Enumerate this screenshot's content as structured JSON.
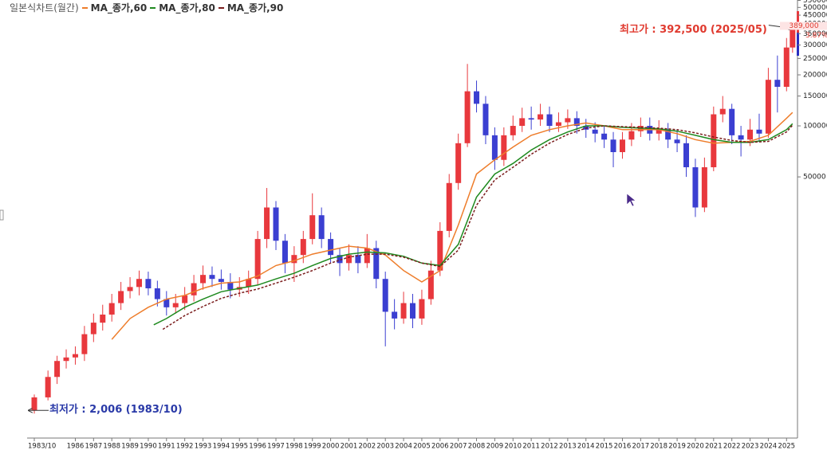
{
  "chart_data": {
    "type": "candlestick",
    "title": "일본식차트(월간)",
    "x": [
      1983.75,
      1984.5,
      1985,
      1985.5,
      1986,
      1986.5,
      1987,
      1987.5,
      1988,
      1988.5,
      1989,
      1989.5,
      1990,
      1990.5,
      1991,
      1991.5,
      1992,
      1992.5,
      1993,
      1993.5,
      1994,
      1994.5,
      1995,
      1995.5,
      1996,
      1996.5,
      1997,
      1997.5,
      1998,
      1998.5,
      1999,
      1999.5,
      2000,
      2000.5,
      2001,
      2001.5,
      2002,
      2002.5,
      2003,
      2003.5,
      2004,
      2004.5,
      2005,
      2005.5,
      2006,
      2006.5,
      2007,
      2007.5,
      2008,
      2008.5,
      2009,
      2009.5,
      2010,
      2010.5,
      2011,
      2011.5,
      2012,
      2012.5,
      2013,
      2013.5,
      2014,
      2014.5,
      2015,
      2015.5,
      2016,
      2016.5,
      2017,
      2017.5,
      2018,
      2018.5,
      2019,
      2019.5,
      2020,
      2020.5,
      2021,
      2021.5,
      2022,
      2022.5,
      2023,
      2023.5,
      2024,
      2024.5,
      2025,
      2025.33
    ],
    "open": [
      2100,
      2500,
      3300,
      4100,
      4300,
      4500,
      5900,
      6900,
      7700,
      9000,
      10600,
      11200,
      12500,
      11000,
      9500,
      8500,
      9000,
      10000,
      11800,
      13200,
      12500,
      12000,
      10800,
      11200,
      12500,
      21500,
      33000,
      21000,
      15500,
      17300,
      21500,
      29700,
      21500,
      17300,
      15500,
      17300,
      15500,
      19000,
      12500,
      8000,
      7300,
      9000,
      7300,
      9500,
      14000,
      24000,
      46000,
      79000,
      160000,
      135000,
      88000,
      63000,
      88000,
      100000,
      111000,
      109000,
      117000,
      100000,
      105000,
      111000,
      100000,
      95000,
      90000,
      83000,
      70000,
      83000,
      93000,
      100000,
      90000,
      95000,
      83000,
      79000,
      57000,
      33000,
      57000,
      117000,
      126000,
      88000,
      83000,
      95000,
      90000,
      187000,
      170000,
      290000
    ],
    "high": [
      2600,
      3600,
      4400,
      4800,
      5000,
      6600,
      7800,
      8800,
      10200,
      12000,
      12800,
      14000,
      13800,
      12200,
      10600,
      10200,
      11200,
      13200,
      15000,
      14800,
      14200,
      13500,
      12800,
      14000,
      24000,
      43000,
      36000,
      23000,
      19500,
      24000,
      40000,
      33000,
      23500,
      19000,
      20000,
      19500,
      23000,
      21000,
      13800,
      9500,
      10500,
      10200,
      10800,
      16000,
      27000,
      52000,
      90000,
      232000,
      185000,
      150000,
      98000,
      98000,
      115000,
      128000,
      130000,
      135000,
      130000,
      120000,
      125000,
      122000,
      110000,
      105000,
      100000,
      92000,
      92000,
      104000,
      112000,
      112000,
      108000,
      104000,
      95000,
      88000,
      64000,
      65000,
      130000,
      150000,
      135000,
      100000,
      110000,
      118000,
      220000,
      260000,
      330000,
      392500
    ],
    "low": [
      2006,
      2400,
      3000,
      3700,
      3900,
      4100,
      5300,
      6200,
      7000,
      8200,
      9600,
      10000,
      10000,
      8600,
      7600,
      7800,
      8200,
      9200,
      10800,
      11200,
      10800,
      9600,
      9800,
      10200,
      11500,
      19000,
      18500,
      13500,
      12000,
      15500,
      20000,
      19000,
      15500,
      13000,
      14000,
      13500,
      14500,
      11000,
      5000,
      6300,
      6800,
      6400,
      6700,
      8800,
      13000,
      22000,
      42000,
      75000,
      120000,
      78000,
      55000,
      58000,
      82000,
      92000,
      95000,
      100000,
      92000,
      92000,
      96000,
      90000,
      85000,
      80000,
      74000,
      57000,
      64000,
      76000,
      86000,
      82000,
      82000,
      74000,
      70000,
      50000,
      29000,
      31000,
      54000,
      105000,
      78000,
      66000,
      76000,
      80000,
      85000,
      120000,
      160000,
      270000
    ],
    "close": [
      2500,
      3300,
      4100,
      4300,
      4500,
      5900,
      6900,
      7700,
      9000,
      10600,
      11200,
      12500,
      11000,
      9500,
      8500,
      9000,
      10000,
      11800,
      13200,
      12500,
      12000,
      10800,
      11200,
      12500,
      21500,
      33000,
      21000,
      15500,
      17300,
      21500,
      29700,
      21500,
      17300,
      15500,
      17300,
      15500,
      19000,
      12500,
      8000,
      7300,
      9000,
      7300,
      9500,
      14000,
      24000,
      46000,
      79000,
      160000,
      135000,
      88000,
      63000,
      88000,
      100000,
      111000,
      109000,
      117000,
      100000,
      105000,
      111000,
      100000,
      95000,
      90000,
      83000,
      70000,
      83000,
      93000,
      100000,
      90000,
      95000,
      83000,
      79000,
      57000,
      33000,
      57000,
      117000,
      126000,
      88000,
      83000,
      95000,
      90000,
      187000,
      170000,
      290000,
      389000
    ],
    "up_color": "#e8383d",
    "down_color": "#3b3fd1",
    "series": [
      {
        "name": "MA_종가,60",
        "color": "#ee7d2b",
        "dash": false,
        "x": [
          1988,
          1989,
          1990,
          1991,
          1992,
          1993,
          1994,
          1995,
          1996,
          1997,
          1998,
          1999,
          2000,
          2001,
          2002,
          2003,
          2004,
          2005,
          2006,
          2007,
          2008,
          2009,
          2010,
          2011,
          2012,
          2013,
          2014,
          2015,
          2016,
          2017,
          2018,
          2019,
          2020,
          2021,
          2022,
          2023,
          2024,
          2025,
          2025.33
        ],
        "values": [
          5500,
          7300,
          8500,
          9500,
          10000,
          11000,
          11800,
          12000,
          13000,
          15000,
          16000,
          17500,
          18500,
          19500,
          19000,
          17300,
          14000,
          12000,
          14000,
          26000,
          52000,
          63000,
          75000,
          88000,
          95000,
          100000,
          104000,
          100000,
          95000,
          95000,
          95000,
          90000,
          83000,
          79000,
          80000,
          81000,
          88000,
          111000,
          120000
        ]
      },
      {
        "name": "MA_종가,80",
        "color": "#1f8a1f",
        "dash": false,
        "x": [
          1990.3,
          1991,
          1992,
          1993,
          1994,
          1995,
          1996,
          1997,
          1998,
          1999,
          2000,
          2001,
          2002,
          2003,
          2004,
          2005,
          2006,
          2007,
          2008,
          2009,
          2010,
          2011,
          2012,
          2013,
          2014,
          2015,
          2016,
          2017,
          2018,
          2019,
          2020,
          2021,
          2022,
          2023,
          2024,
          2025,
          2025.33
        ],
        "values": [
          6700,
          7300,
          8500,
          9500,
          10500,
          11000,
          11500,
          12500,
          13500,
          15000,
          16500,
          17500,
          18000,
          17800,
          17000,
          15500,
          15000,
          20000,
          38000,
          52000,
          60000,
          72000,
          83000,
          92000,
          100000,
          100000,
          98000,
          97000,
          96000,
          93000,
          88000,
          83000,
          80000,
          80000,
          83000,
          95000,
          103000
        ]
      },
      {
        "name": "MA_종가,90",
        "color": "#7a1c1c",
        "dash": true,
        "x": [
          1990.8,
          1992,
          1993,
          1994,
          1995,
          1996,
          1997,
          1998,
          1999,
          2000,
          2001,
          2002,
          2003,
          2004,
          2005,
          2006,
          2007,
          2008,
          2009,
          2010,
          2011,
          2012,
          2013,
          2014,
          2015,
          2016,
          2017,
          2018,
          2019,
          2020,
          2021,
          2022,
          2023,
          2024,
          2025,
          2025.33
        ],
        "values": [
          6300,
          7600,
          8600,
          9600,
          10300,
          10900,
          11800,
          12800,
          14000,
          15500,
          16800,
          17500,
          17500,
          16800,
          15500,
          14800,
          18500,
          34000,
          48000,
          57000,
          68000,
          79000,
          89000,
          97000,
          100000,
          99000,
          98000,
          97000,
          95000,
          91000,
          86000,
          82000,
          80000,
          81000,
          92000,
          101000
        ]
      }
    ],
    "xlim": [
      1983.4,
      2025.6
    ],
    "xticks": [
      {
        "value": 1983.75,
        "label": "1983/10"
      },
      1986,
      1987,
      1988,
      1989,
      1990,
      1991,
      1992,
      1993,
      1994,
      1995,
      1996,
      1997,
      1998,
      1999,
      2000,
      2001,
      2002,
      2003,
      2004,
      2005,
      2006,
      2007,
      2008,
      2009,
      2010,
      2011,
      2012,
      2013,
      2014,
      2015,
      2016,
      2017,
      2018,
      2019,
      2020,
      2021,
      2022,
      2023,
      2024,
      2025
    ],
    "ylim": [
      1470,
      553000
    ],
    "yticks": [
      50000,
      100000,
      150000,
      200000,
      250000,
      300000,
      350000,
      400000,
      450000,
      500000,
      550000
    ],
    "log_y": true,
    "last_price": {
      "value": 389000,
      "label": "389,000"
    },
    "change_label": "3.87%",
    "annotations": [
      {
        "label": "최고가 : 392,500 (2025/05)",
        "value": 392500,
        "x": 2025.33,
        "color": "#e03a2f"
      },
      {
        "label": "최저가 : 2,006 (1983/10)",
        "value": 2006,
        "x": 1983.75,
        "color": "#2a3aa8"
      }
    ]
  }
}
